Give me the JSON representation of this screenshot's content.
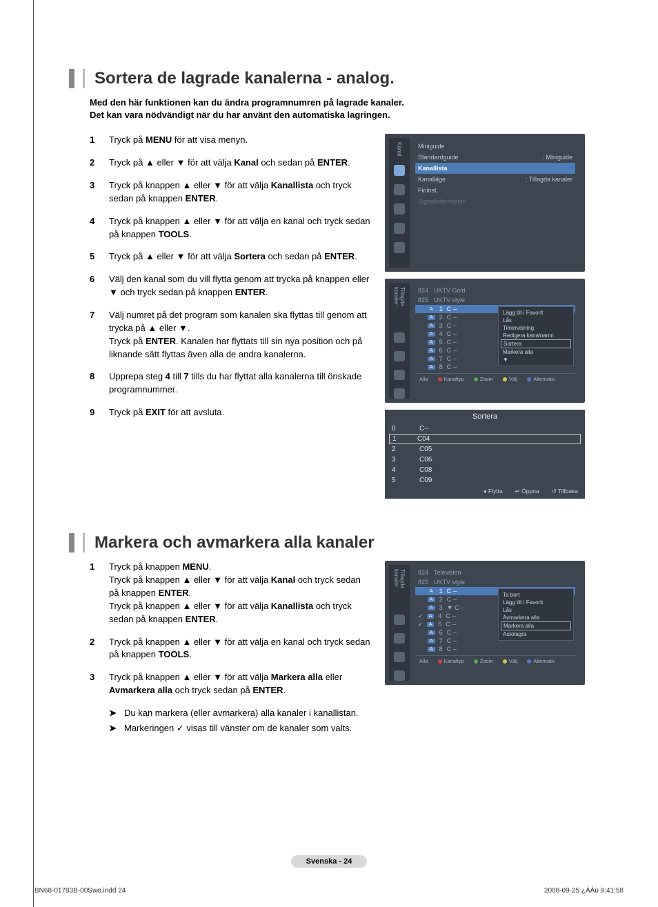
{
  "section1": {
    "title": "Sortera de lagrade kanalerna - analog",
    "title_suffix": ".",
    "intro_l1": "Med den här funktionen kan du ändra programnumren på lagrade kanaler.",
    "intro_l2": "Det kan vara nödvändigt när du har använt den automatiska lagringen.",
    "steps": [
      {
        "n": "1",
        "html": "Tryck på <b>MENU</b> för att visa menyn."
      },
      {
        "n": "2",
        "html": "Tryck på ▲ eller ▼ för att välja <b>Kanal</b> och sedan på <b>ENTER</b>."
      },
      {
        "n": "3",
        "html": "Tryck på knappen ▲ eller ▼ för att välja <b>Kanallista</b> och tryck sedan på knappen <b>ENTER</b>."
      },
      {
        "n": "4",
        "html": "Tryck på knappen ▲ eller ▼ för att välja en kanal och tryck sedan på knappen <b>TOOLS</b>."
      },
      {
        "n": "5",
        "html": "Tryck på ▲ eller ▼ för att välja <b>Sortera</b> och sedan på <b>ENTER</b>."
      },
      {
        "n": "6",
        "html": "Välj den kanal som du vill flytta genom att trycka på knappen  eller ▼ och tryck sedan på knappen <b>ENTER</b>."
      },
      {
        "n": "7",
        "html": "Välj numret på det program som kanalen ska flyttas till genom att trycka på ▲ eller ▼.<br>Tryck på <b>ENTER</b>. Kanalen har flyttats till sin nya position och på liknande sätt flyttas även alla de andra kanalerna."
      },
      {
        "n": "8",
        "html": "Upprepa steg <b>4</b> till <b>7</b> tills du har flyttat alla kanalerna till önskade programnummer."
      },
      {
        "n": "9",
        "html": "Tryck på <b>EXIT</b> för att avsluta."
      }
    ]
  },
  "osd_menu": {
    "side_label": "Kanal",
    "rows": [
      {
        "l": "Miniguide",
        "r": ""
      },
      {
        "l": "Standardguide",
        "r": ": Miniguide"
      },
      {
        "l": "Kanallista",
        "r": "",
        "sel": true
      },
      {
        "l": "Kanalläge",
        "r": ": Tillagda kanaler"
      },
      {
        "l": "Fininst.",
        "r": ""
      },
      {
        "l": "Signalinformation",
        "r": "",
        "dim": true
      }
    ]
  },
  "osd_list1": {
    "side_label": "Tillagda kanaler",
    "header": [
      {
        "n": "824",
        "t": "UKTV Gold"
      },
      {
        "n": "825",
        "t": "UKTV style"
      }
    ],
    "items": [
      {
        "b": "A",
        "n": "1",
        "t": "C --",
        "sel": true
      },
      {
        "b": "A",
        "n": "2",
        "t": "C --"
      },
      {
        "b": "A",
        "n": "3",
        "t": "C --"
      },
      {
        "b": "A",
        "n": "4",
        "t": "C --"
      },
      {
        "b": "A",
        "n": "5",
        "t": "C --"
      },
      {
        "b": "A",
        "n": "6",
        "t": "C --"
      },
      {
        "b": "A",
        "n": "7",
        "t": "C --"
      },
      {
        "b": "A",
        "n": "8",
        "t": "C --"
      }
    ],
    "ctx": [
      "Lägg till i Favorit",
      "Lås",
      "Timervisning",
      "Redigera kanalnamn",
      "Sortera",
      "Markera alla",
      "▼"
    ],
    "ctx_hl_index": 4,
    "footer": {
      "left": "Alla",
      "items": [
        "Kanaltyp",
        "Zoom",
        "Välj",
        "Alternativ"
      ]
    }
  },
  "osd_sort": {
    "title": "Sortera",
    "rows": [
      {
        "i": "0",
        "v": "C--"
      },
      {
        "i": "1",
        "v": "C04",
        "boxed": true
      },
      {
        "i": "2",
        "v": "C05"
      },
      {
        "i": "3",
        "v": "C06"
      },
      {
        "i": "4",
        "v": "C08"
      },
      {
        "i": "5",
        "v": "C09"
      }
    ],
    "footer": [
      "♦ Flytta",
      "↵ Öppna",
      "↺ Tillbaka"
    ]
  },
  "section2": {
    "title": "Markera och avmarkera alla kanaler",
    "steps": [
      {
        "n": "1",
        "html": "Tryck på knappen <b>MENU</b>.<br>Tryck på knappen ▲ eller ▼ för att välja <b>Kanal</b> och tryck sedan på knappen <b>ENTER</b>.<br>Tryck på knappen ▲ eller ▼ för att välja <b>Kanallista</b> och tryck sedan på knappen <b>ENTER</b>."
      },
      {
        "n": "2",
        "html": "Tryck på knappen ▲ eller ▼ för att välja en kanal och tryck sedan på knappen <b>TOOLS</b>."
      },
      {
        "n": "3",
        "html": "Tryck på knappen ▲ eller ▼ för att välja <b>Markera alla</b> eller <b>Avmarkera alla</b> och tryck sedan på <b>ENTER</b>."
      }
    ],
    "subs": [
      "Du kan markera (eller avmarkera) alla kanaler i kanallistan.",
      "Markeringen ✓ visas till vänster om de kanaler som valts."
    ]
  },
  "osd_list2": {
    "side_label": "Tillagda kanaler",
    "header": [
      {
        "n": "824",
        "t": "Television"
      },
      {
        "n": "825",
        "t": "UKTV style"
      }
    ],
    "items": [
      {
        "b": "A",
        "n": "1",
        "t": "C --",
        "sel": true
      },
      {
        "b": "A",
        "n": "2",
        "t": "C --"
      },
      {
        "b": "A",
        "n": "3",
        "t": "▼ C --"
      },
      {
        "b": "A",
        "n": "4",
        "t": "C --",
        "chk": true
      },
      {
        "b": "A",
        "n": "5",
        "t": "C --",
        "chk": true
      },
      {
        "b": "A",
        "n": "6",
        "t": "C --"
      },
      {
        "b": "A",
        "n": "7",
        "t": "C --"
      },
      {
        "b": "A",
        "n": "8",
        "t": "C --"
      }
    ],
    "ctx": [
      "Ta bort",
      "Lägg till i Favorit",
      "Lås",
      "Avmarkera alla",
      "Markera alla",
      "Autolagra"
    ],
    "ctx_hl_index": 4,
    "footer": {
      "left": "Alla",
      "items": [
        "Kanaltyp",
        "Zoom",
        "Välj",
        "Alternativ"
      ]
    }
  },
  "page_footer": "Svenska - 24",
  "print_left": "BN68-01783B-00Swe.indd   24",
  "print_right": "2008-09-25   ¿ÀÀü 9:41:58"
}
